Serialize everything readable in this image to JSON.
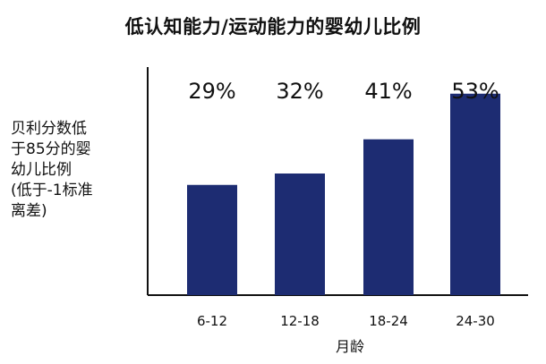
{
  "chart_data": {
    "type": "bar",
    "title": "低认知能力/运动能力的婴幼儿比例",
    "ylabel": "贝利分数低\n于85分的婴\n幼儿比例\n(低于-1标准\n离差)",
    "xlabel": "月龄",
    "categories": [
      "6-12",
      "12-18",
      "18-24",
      "24-30"
    ],
    "values": [
      29,
      32,
      41,
      53
    ],
    "data_labels": [
      "29%",
      "32%",
      "41%",
      "53%"
    ],
    "ylim": [
      0,
      60
    ],
    "grid": false,
    "legend": "none",
    "bar_color": "#1d2c72",
    "axis_color": "#111111"
  }
}
